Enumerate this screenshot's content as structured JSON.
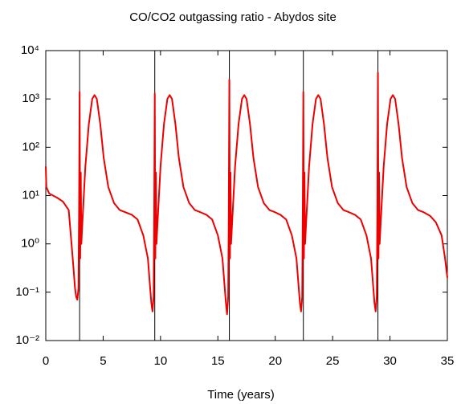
{
  "chart_data": {
    "type": "line",
    "title": "CO/CO2 outgassing ratio - Abydos site",
    "x_label": "Time (years)",
    "log_y": true,
    "xlim": [
      0,
      35
    ],
    "xticks": [
      0,
      5,
      10,
      15,
      20,
      25,
      30,
      35
    ],
    "ylim": [
      0.01,
      10000
    ],
    "yticks": [
      {
        "value": 0.01,
        "label": "10⁻²"
      },
      {
        "value": 0.1,
        "label": "10⁻¹"
      },
      {
        "value": 1,
        "label": "10⁰"
      },
      {
        "value": 10,
        "label": "10¹"
      },
      {
        "value": 100,
        "label": "10²"
      },
      {
        "value": 1000,
        "label": "10³"
      },
      {
        "value": 10000,
        "label": "10⁴"
      }
    ],
    "vlines": [
      2.95,
      9.5,
      16.0,
      22.45,
      28.95
    ],
    "vline_color": "#000000",
    "series": [
      {
        "color": "#ee0000",
        "x": [
          0,
          0.05,
          0.3,
          1.0,
          1.5,
          2.0,
          2.35,
          2.55,
          2.65,
          2.75,
          2.85,
          2.9,
          2.95,
          3.0,
          3.05,
          3.1,
          3.2,
          3.45,
          3.75,
          4.05,
          4.25,
          4.45,
          4.75,
          5.05,
          5.45,
          5.95,
          6.45,
          6.95,
          7.5,
          8.0,
          8.5,
          8.9,
          9.1,
          9.2,
          9.3,
          9.4,
          9.45,
          9.5,
          9.55,
          9.6,
          9.65,
          9.75,
          10.0,
          10.3,
          10.6,
          10.8,
          11.0,
          11.3,
          11.6,
          12.0,
          12.5,
          13.0,
          13.5,
          14.0,
          14.5,
          15.0,
          15.4,
          15.6,
          15.7,
          15.8,
          15.9,
          15.95,
          16.0,
          16.05,
          16.1,
          16.15,
          16.25,
          16.5,
          16.8,
          17.1,
          17.3,
          17.5,
          17.8,
          18.1,
          18.5,
          19.0,
          19.5,
          20.0,
          20.45,
          20.95,
          21.45,
          21.85,
          22.05,
          22.15,
          22.25,
          22.35,
          22.4,
          22.45,
          22.5,
          22.55,
          22.6,
          22.7,
          22.95,
          23.25,
          23.55,
          23.75,
          23.95,
          24.25,
          24.55,
          24.95,
          25.45,
          25.95,
          26.45,
          26.95,
          27.45,
          27.95,
          28.35,
          28.55,
          28.65,
          28.75,
          28.85,
          28.9,
          28.95,
          29.0,
          29.05,
          29.1,
          29.2,
          29.45,
          29.75,
          30.05,
          30.25,
          30.45,
          30.75,
          31.05,
          31.45,
          31.95,
          32.45,
          32.95,
          33.5,
          34.0,
          34.5,
          34.8,
          35.0
        ],
        "values": [
          40,
          15,
          11,
          9,
          7.5,
          5,
          0.5,
          0.12,
          0.08,
          0.07,
          0.12,
          5,
          1400,
          0.5,
          30,
          1,
          3,
          40,
          300,
          1000,
          1200,
          1000,
          300,
          60,
          15,
          7,
          5,
          4.5,
          4.0,
          3.2,
          1.5,
          0.5,
          0.12,
          0.06,
          0.04,
          0.08,
          5,
          1300,
          0.5,
          30,
          1,
          3,
          40,
          300,
          1000,
          1200,
          1000,
          300,
          60,
          15,
          7,
          5,
          4.5,
          4.0,
          3.2,
          1.5,
          0.5,
          0.12,
          0.06,
          0.035,
          0.08,
          5,
          2500,
          0.5,
          30,
          1,
          3,
          40,
          300,
          1000,
          1200,
          1000,
          300,
          60,
          15,
          7,
          5,
          4.5,
          4.0,
          3.2,
          1.5,
          0.5,
          0.12,
          0.06,
          0.04,
          0.08,
          5,
          1400,
          0.5,
          30,
          1,
          3,
          40,
          300,
          1000,
          1200,
          1000,
          300,
          60,
          15,
          7,
          5,
          4.5,
          4.0,
          3.2,
          1.5,
          0.5,
          0.12,
          0.06,
          0.04,
          0.08,
          5,
          3500,
          0.5,
          30,
          1,
          3,
          40,
          300,
          1000,
          1200,
          1000,
          300,
          60,
          15,
          7,
          5,
          4.5,
          3.8,
          2.8,
          1.5,
          0.5,
          0.2
        ]
      }
    ]
  }
}
